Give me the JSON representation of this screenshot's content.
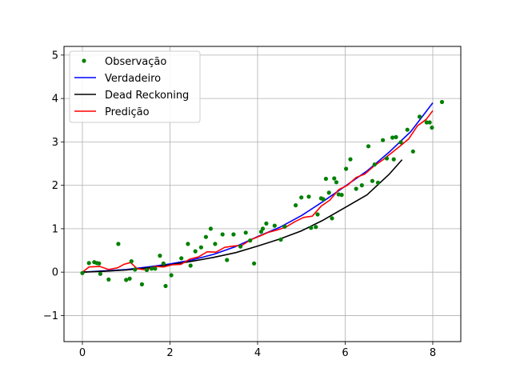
{
  "chart_data": {
    "type": "line",
    "title": "",
    "xlabel": "",
    "ylabel": "",
    "xlim": [
      -0.42,
      8.64
    ],
    "ylim": [
      -1.6,
      5.2
    ],
    "xticks": [
      0,
      2,
      4,
      6,
      8
    ],
    "yticks": [
      -1,
      0,
      1,
      2,
      3,
      4,
      5
    ],
    "xtick_labels": [
      "0",
      "2",
      "4",
      "6",
      "8"
    ],
    "ytick_labels": [
      "−1",
      "0",
      "1",
      "2",
      "3",
      "4",
      "5"
    ],
    "grid": true,
    "legend_position": "top-left",
    "series": [
      {
        "name": "Observação",
        "type": "scatter",
        "color": "#008000",
        "x": [
          0.0,
          0.15,
          0.27,
          0.33,
          0.38,
          0.41,
          0.6,
          0.82,
          1.0,
          1.08,
          1.12,
          1.2,
          1.36,
          1.47,
          1.58,
          1.66,
          1.77,
          1.85,
          1.9,
          2.03,
          2.26,
          2.41,
          2.47,
          2.58,
          2.71,
          2.82,
          2.93,
          3.03,
          3.2,
          3.3,
          3.45,
          3.61,
          3.73,
          3.83,
          3.92,
          4.08,
          4.12,
          4.2,
          4.39,
          4.53,
          4.62,
          4.87,
          5.0,
          5.17,
          5.22,
          5.33,
          5.37,
          5.45,
          5.5,
          5.56,
          5.63,
          5.7,
          5.75,
          5.8,
          5.85,
          5.92,
          6.02,
          6.12,
          6.25,
          6.38,
          6.53,
          6.62,
          6.67,
          6.75,
          6.86,
          6.95,
          7.08,
          7.11,
          7.16,
          7.27,
          7.42,
          7.55,
          7.7,
          7.86,
          7.93,
          7.98,
          8.21
        ],
        "y": [
          -0.02,
          0.21,
          0.23,
          0.21,
          0.2,
          -0.04,
          -0.17,
          0.65,
          -0.18,
          -0.15,
          0.25,
          0.06,
          -0.28,
          0.05,
          0.08,
          0.08,
          0.38,
          0.2,
          -0.32,
          -0.07,
          0.32,
          0.65,
          0.15,
          0.48,
          0.57,
          0.81,
          1.0,
          0.65,
          0.87,
          0.28,
          0.87,
          0.59,
          0.91,
          0.73,
          0.2,
          0.93,
          1.0,
          1.12,
          1.07,
          0.75,
          1.05,
          1.54,
          1.72,
          1.74,
          1.02,
          1.04,
          1.33,
          1.7,
          1.68,
          2.15,
          1.83,
          1.24,
          2.16,
          2.07,
          1.79,
          1.78,
          2.38,
          2.6,
          1.92,
          2.0,
          2.9,
          2.1,
          2.48,
          2.06,
          3.04,
          2.62,
          3.1,
          2.6,
          3.11,
          2.99,
          3.28,
          2.78,
          3.58,
          3.45,
          3.45,
          3.33,
          3.92
        ]
      },
      {
        "name": "Verdadeiro",
        "type": "line",
        "color": "#0000ff",
        "x": [
          0,
          0.5,
          1,
          1.5,
          2,
          2.5,
          3,
          3.5,
          4,
          4.5,
          5,
          5.5,
          6,
          6.5,
          7,
          7.5,
          8
        ],
        "y": [
          0.0,
          0.03,
          0.06,
          0.12,
          0.19,
          0.28,
          0.41,
          0.59,
          0.82,
          1.03,
          1.3,
          1.63,
          1.98,
          2.33,
          2.76,
          3.24,
          3.9
        ]
      },
      {
        "name": "Dead Reckoning",
        "type": "line",
        "color": "#000000",
        "x": [
          0,
          0.5,
          1,
          1.5,
          2,
          2.5,
          3,
          3.5,
          4,
          4.5,
          5,
          5.5,
          6,
          6.5,
          7,
          7.3
        ],
        "y": [
          0.0,
          0.02,
          0.05,
          0.1,
          0.17,
          0.25,
          0.34,
          0.45,
          0.6,
          0.76,
          0.95,
          1.2,
          1.49,
          1.78,
          2.25,
          2.59
        ]
      },
      {
        "name": "Predição",
        "type": "line",
        "color": "#ff0000",
        "x": [
          0,
          0.15,
          0.4,
          0.6,
          0.8,
          0.95,
          1.1,
          1.25,
          1.45,
          1.65,
          1.85,
          2.05,
          2.25,
          2.45,
          2.65,
          2.85,
          3.05,
          3.25,
          3.45,
          3.65,
          3.85,
          4.05,
          4.25,
          4.45,
          4.65,
          4.85,
          5.05,
          5.25,
          5.45,
          5.65,
          5.85,
          6.05,
          6.25,
          6.45,
          6.65,
          6.85,
          7.05,
          7.25,
          7.45,
          7.65,
          7.85,
          8.0
        ],
        "y": [
          0.0,
          0.12,
          0.13,
          0.06,
          0.1,
          0.18,
          0.22,
          0.08,
          0.05,
          0.13,
          0.12,
          0.17,
          0.18,
          0.3,
          0.35,
          0.47,
          0.46,
          0.57,
          0.6,
          0.62,
          0.75,
          0.83,
          0.92,
          0.97,
          1.04,
          1.16,
          1.26,
          1.29,
          1.52,
          1.66,
          1.9,
          2.0,
          2.18,
          2.26,
          2.44,
          2.58,
          2.74,
          2.9,
          3.07,
          3.37,
          3.52,
          3.72
        ]
      }
    ]
  }
}
